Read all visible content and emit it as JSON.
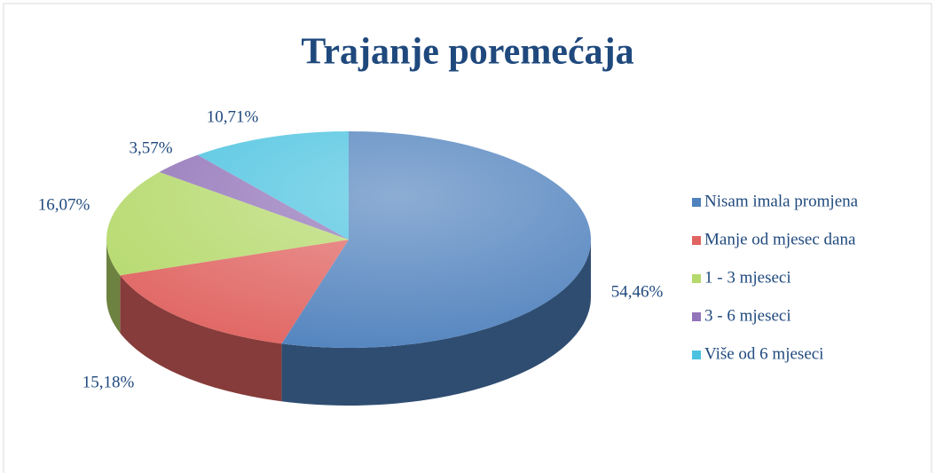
{
  "chart_data": {
    "type": "pie3d",
    "title": "Trajanje poremećaja",
    "categories": [
      "Nisam imala promjena",
      "Manje od mjesec dana",
      "1 - 3 mjeseci",
      "3 - 6 mjeseci",
      "Više od 6 mjeseci"
    ],
    "values": [
      54.46,
      15.18,
      16.07,
      3.57,
      10.71
    ],
    "value_labels": [
      "54,46%",
      "15,18%",
      "16,07%",
      "3,57%",
      "10,71%"
    ],
    "colors": [
      "#4f81bd",
      "#e06461",
      "#b5d96b",
      "#9274b8",
      "#4bc3e0"
    ],
    "legend": "right"
  }
}
